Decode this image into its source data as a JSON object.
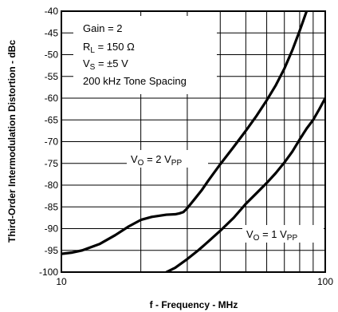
{
  "chart_data": {
    "type": "line",
    "xlabel": "f - Frequency - MHz",
    "ylabel": "Third-Order Intermodulation Distortion - dBc",
    "xscale": "log",
    "xlim": [
      10,
      100
    ],
    "ylim": [
      -100,
      -40
    ],
    "x_tick_labels": [
      "10",
      "100"
    ],
    "y_ticks": [
      -40,
      -45,
      -50,
      -55,
      -60,
      -65,
      -70,
      -75,
      -80,
      -85,
      -90,
      -95,
      -100
    ],
    "grid": true,
    "annotations": [
      "Gain = 2",
      "RL = 150 Ω",
      "VS = ±5 V",
      "200 kHz Tone Spacing"
    ],
    "series": [
      {
        "name": "VO = 2 VPP",
        "x": [
          10,
          11,
          12,
          14,
          16,
          18,
          20,
          22,
          25,
          27,
          28,
          29,
          30,
          32,
          34,
          36,
          40,
          45,
          50,
          55,
          60,
          65,
          70,
          75,
          80,
          85
        ],
        "y": [
          -95.8,
          -95.5,
          -95.0,
          -93.5,
          -91.5,
          -89.5,
          -88.0,
          -87.3,
          -86.8,
          -86.7,
          -86.5,
          -86.2,
          -85.3,
          -83.2,
          -81.2,
          -79.0,
          -75.2,
          -71.2,
          -67.5,
          -64.0,
          -60.5,
          -57.0,
          -53.2,
          -49.0,
          -44.5,
          -40.0
        ]
      },
      {
        "name": "VO = 1 VPP",
        "x": [
          25,
          27,
          30,
          33,
          36,
          40,
          45,
          50,
          55,
          60,
          65,
          70,
          75,
          80,
          85,
          90,
          95,
          100
        ],
        "y": [
          -100,
          -99.0,
          -97.0,
          -95.0,
          -93.0,
          -90.5,
          -87.5,
          -84.3,
          -81.8,
          -79.5,
          -77.2,
          -74.8,
          -72.3,
          -69.5,
          -67.0,
          -65.0,
          -62.5,
          -60.0
        ]
      }
    ]
  },
  "annotation_text": {
    "gain_prefix": "Gain = 2",
    "rl_main": "R",
    "rl_sub": "L",
    "rl_value": " = 150 Ω",
    "vs_main": "V",
    "vs_sub": "S",
    "vs_value": " = ±5 V",
    "spacing": "200 kHz Tone Spacing"
  },
  "series_labels": {
    "vo2_main": "V",
    "vo2_sub": "O",
    "vo2_value": " = 2 V",
    "vo2_sub2": "PP",
    "vo1_main": "V",
    "vo1_sub": "O",
    "vo1_value": " = 1 V",
    "vo1_sub2": "PP"
  }
}
